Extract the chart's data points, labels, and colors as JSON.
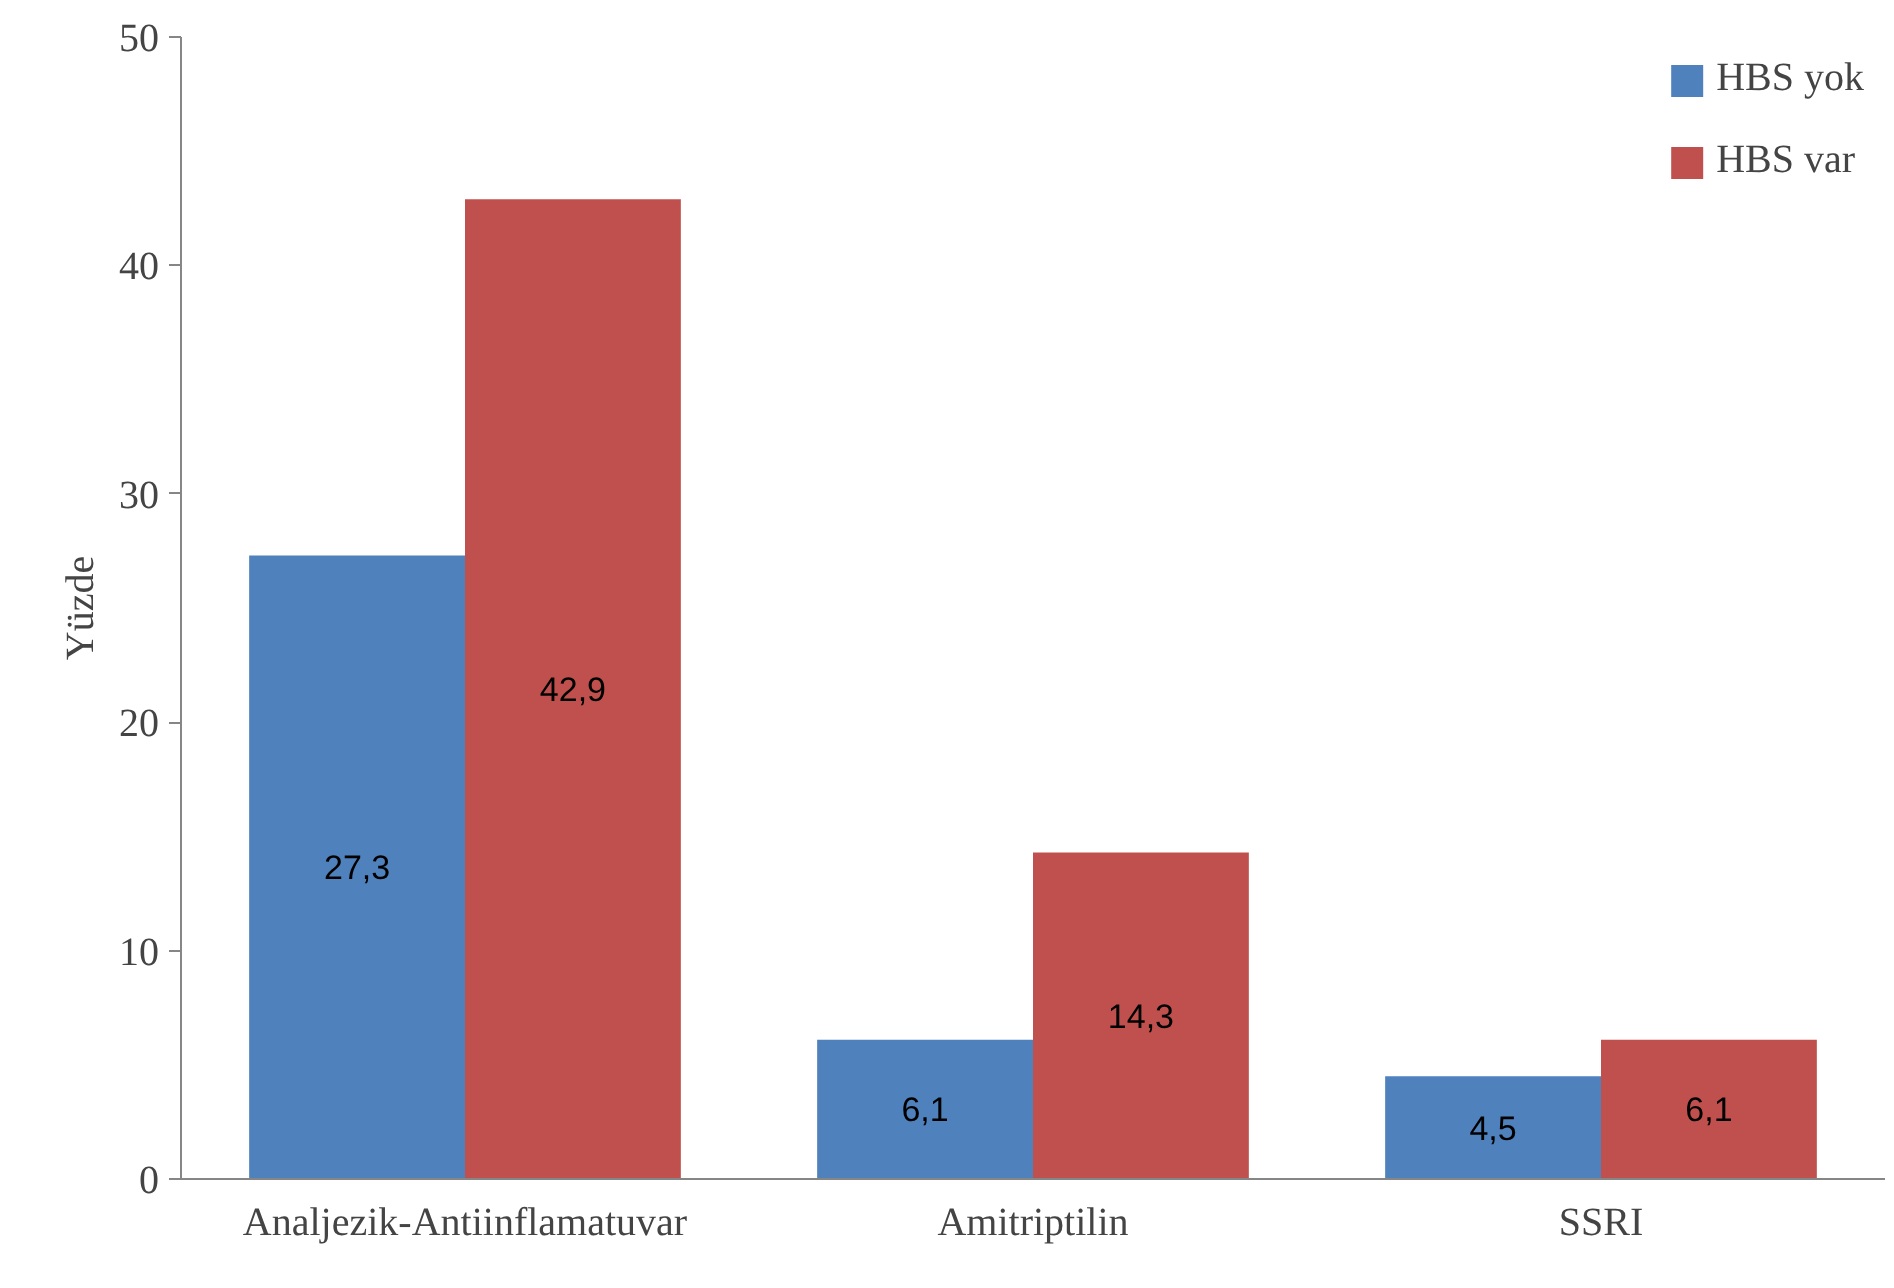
{
  "chart_data": {
    "type": "bar",
    "ylabel": "Yüzde",
    "categories": [
      "Analjezik-Antiinflamatuvar",
      "Amitriptilin",
      "SSRI"
    ],
    "series": [
      {
        "name": "HBS yok",
        "color": "#4f81bd",
        "values": [
          27.3,
          6.1,
          4.5
        ],
        "value_labels": [
          "27,3",
          "6,1",
          "4,5"
        ]
      },
      {
        "name": "HBS var",
        "color": "#c0504d",
        "values": [
          42.9,
          14.3,
          6.1
        ],
        "value_labels": [
          "42,9",
          "14,3",
          "6,1"
        ]
      }
    ],
    "ylim": [
      0,
      50
    ],
    "yticks": [
      0,
      10,
      20,
      30,
      40,
      50
    ],
    "grid": false,
    "legend": "top right"
  }
}
